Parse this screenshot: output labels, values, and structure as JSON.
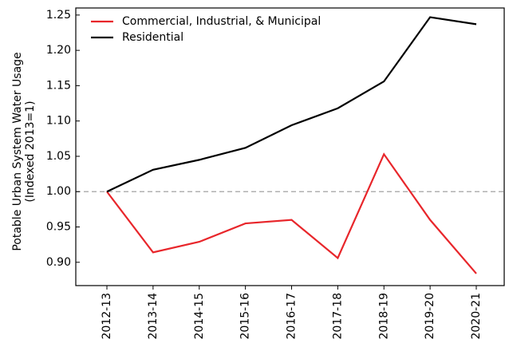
{
  "chart_data": {
    "type": "line",
    "y_label": [
      "Potable Urban System Water Usage",
      "(Indexed 2013=1)"
    ],
    "categories": [
      "2012-13",
      "2013-14",
      "2014-15",
      "2015-16",
      "2016-17",
      "2017-18",
      "2018-19",
      "2019-20",
      "2020-21"
    ],
    "series": [
      {
        "name": "Commercial, Industrial, & Municipal",
        "color": "#e8262b",
        "values": [
          1.0,
          0.914,
          0.929,
          0.955,
          0.96,
          0.906,
          1.053,
          0.96,
          0.884
        ]
      },
      {
        "name": "Residential",
        "color": "#000000",
        "values": [
          1.0,
          1.031,
          1.045,
          1.062,
          1.094,
          1.118,
          1.156,
          1.247,
          1.237
        ]
      }
    ],
    "reference_line": {
      "value": 1,
      "color": "#b0b0b0"
    },
    "ylim": [
      0.867,
      1.26
    ],
    "yticks": [
      {
        "value": 0.9,
        "label": "0.90"
      },
      0.95,
      {
        "value": 1.0,
        "label": "1.00"
      },
      1.05,
      {
        "value": 1.1,
        "label": "1.10"
      },
      1.15,
      {
        "value": 1.2,
        "label": "1.20"
      },
      1.25
    ],
    "legend": "upper left"
  }
}
